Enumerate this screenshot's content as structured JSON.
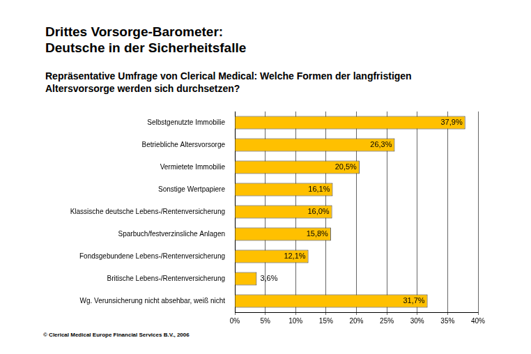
{
  "chart_data": {
    "type": "bar",
    "orientation": "horizontal",
    "title": [
      "Drittes Vorsorge-Barometer:",
      "Deutsche in der Sicherheitsfalle"
    ],
    "subtitle": [
      "Repräsentative Umfrage von Clerical Medical: Welche Formen der langfristigen",
      "Altersvorsorge werden sich durchsetzen?"
    ],
    "annotations": [
      "© Clerical Medical Europe Financial Services B.V., 2006"
    ],
    "categories": [
      "Selbstgenutzte Immobilie",
      "Betriebliche Altersvorsorge",
      "Vermietete Immobilie",
      "Sonstige Wertpapiere",
      "Klassische deutsche Lebens-/Rentenversicherung",
      "Sparbuch/festverzinsliche Anlagen",
      "Fondsgebundene Lebens-/Rentenversicherung",
      "Britische Lebens-/Rentenversicherung",
      "Wg. Verunsicherung nicht absehbar, weiß nicht"
    ],
    "values": [
      37.9,
      26.3,
      20.5,
      16.1,
      16.0,
      15.8,
      12.1,
      3.6,
      31.7
    ],
    "value_labels": [
      "37,9%",
      "26,3%",
      "20,5%",
      "16,1%",
      "16,0%",
      "15,8%",
      "12,1%",
      "3,6%",
      "31,7%"
    ],
    "color": "#ffc000",
    "xlim": [
      0,
      40
    ],
    "xticks": [
      {
        "value": 0,
        "label": "0%"
      },
      {
        "value": 5,
        "label": "5%"
      },
      {
        "value": 10,
        "label": "10%"
      },
      {
        "value": 15,
        "label": "15%"
      },
      {
        "value": 20,
        "label": "20%"
      },
      {
        "value": 25,
        "label": "25%"
      },
      {
        "value": 30,
        "label": "30%"
      },
      {
        "value": 35,
        "label": "35%"
      },
      {
        "value": 40,
        "label": "40%"
      }
    ],
    "grid": true,
    "data_labels": true
  }
}
